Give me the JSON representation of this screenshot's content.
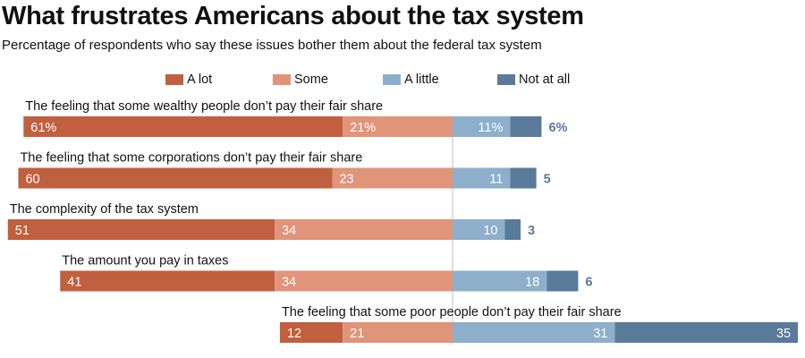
{
  "header": {
    "title": "What frustrates Americans about the tax system",
    "subtitle": "Percentage of respondents who say these issues bother them about the federal tax system"
  },
  "chart_data": {
    "type": "bar",
    "orientation": "horizontal",
    "stacked": "diverging",
    "title": "What frustrates Americans about the tax system",
    "subtitle": "Percentage of respondents who say these issues bother them about the federal tax system",
    "legend_position": "top",
    "categories": [
      "The feeling that some wealthy people don’t pay their fair share",
      "The feeling that some corporations don’t pay their fair share",
      "The complexity of the tax system",
      "The amount you pay in taxes",
      "The feeling that some poor people don’t pay their fair share"
    ],
    "series": [
      {
        "name": "A lot",
        "color": "#c0603f",
        "side": "left",
        "values": [
          61,
          60,
          51,
          41,
          12
        ]
      },
      {
        "name": "Some",
        "color": "#e0947a",
        "side": "left",
        "values": [
          21,
          23,
          34,
          34,
          21
        ]
      },
      {
        "name": "A little",
        "color": "#8dafcc",
        "side": "right",
        "values": [
          11,
          11,
          10,
          18,
          31
        ]
      },
      {
        "name": "Not at all",
        "color": "#5a7a9a",
        "side": "right",
        "values": [
          6,
          5,
          3,
          6,
          35
        ]
      }
    ],
    "value_labels": [
      [
        "61%",
        "21%",
        "11%",
        "6%"
      ],
      [
        "60",
        "23",
        "11",
        "5"
      ],
      [
        "51",
        "34",
        "10",
        "3"
      ],
      [
        "41",
        "34",
        "18",
        "6"
      ],
      [
        "12",
        "21",
        "31",
        "35"
      ]
    ],
    "outside_label_color": "#5a7a9a",
    "xlabel": "",
    "ylabel": ""
  }
}
